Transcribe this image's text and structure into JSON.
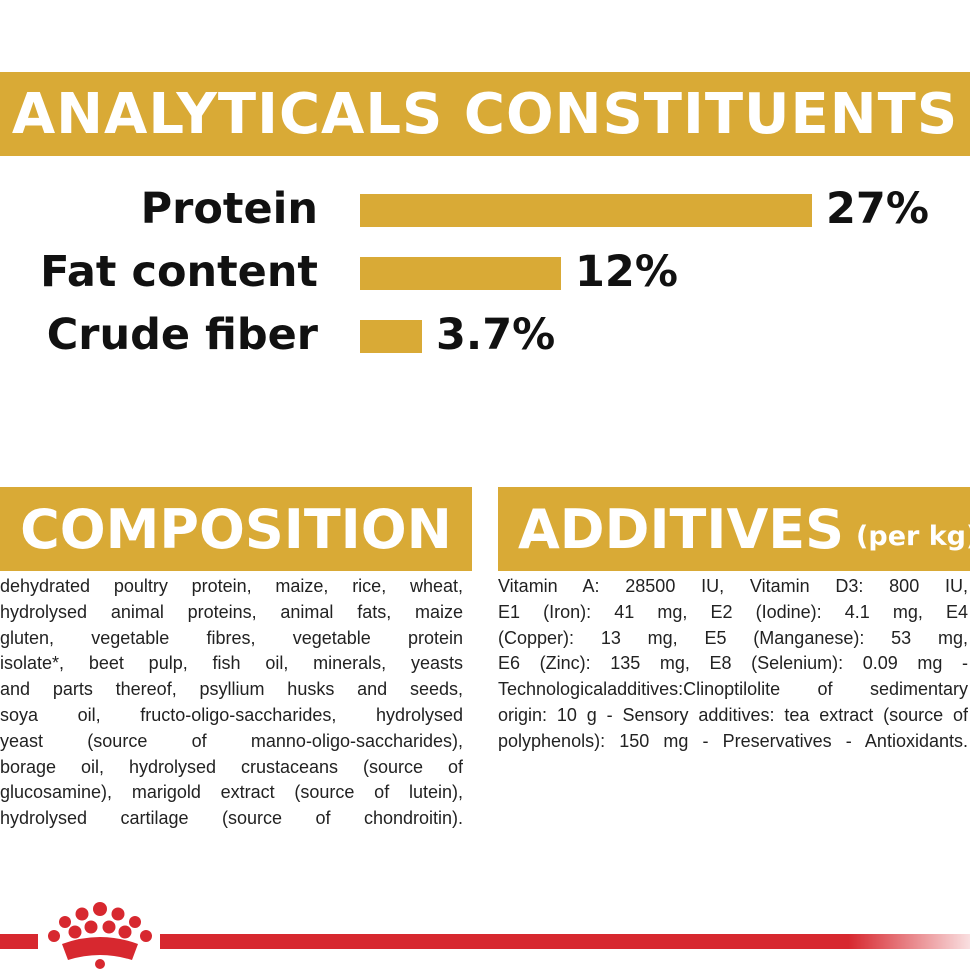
{
  "analytical": {
    "title": "ANALYTICALS CONSTITUENTS",
    "rows": [
      {
        "label": "Protein",
        "value": "27%",
        "percent": 27
      },
      {
        "label": "Fat content",
        "value": "12%",
        "percent": 12
      },
      {
        "label": "Crude fiber",
        "value": "3.7%",
        "percent": 3.7
      }
    ]
  },
  "composition": {
    "title": "COMPOSITION",
    "lines": [
      "dehydrated poultry protein, maize, rice, wheat,",
      "hydrolysed animal proteins, animal fats, maize",
      "gluten, vegetable fibres, vegetable protein",
      "isolate*, beet pulp, fish oil, minerals, yeasts",
      "and parts thereof, psyllium husks and seeds,",
      "soya oil, fructo-oligo-saccharides, hydrolysed",
      "yeast (source of manno-oligo-saccharides),",
      "borage oil, hydrolysed crustaceans (source of",
      "glucosamine), marigold extract (source of lutein),",
      "hydrolysed cartilage (source of chondroitin)."
    ]
  },
  "additives": {
    "title": "ADDITIVES",
    "subtitle": "(per kg)",
    "lines": [
      "Vitamin A: 28500 IU, Vitamin D3: 800 IU,",
      "E1 (Iron): 41 mg, E2 (Iodine): 4.1 mg, E4",
      "(Copper): 13 mg, E5 (Manganese): 53 mg,",
      "E6 (Zinc): 135 mg, E8 (Selenium): 0.09 mg -",
      "Technologicaladditives:Clinoptilolite of sedimentary",
      "origin: 10 g - Sensory additives: tea extract (source of",
      "polyphenols): 150 mg - Preservatives - Antioxidants."
    ]
  },
  "colors": {
    "gold": "#d9aa36",
    "red": "#d7282f"
  },
  "logo": {
    "icon": "crown-icon"
  }
}
